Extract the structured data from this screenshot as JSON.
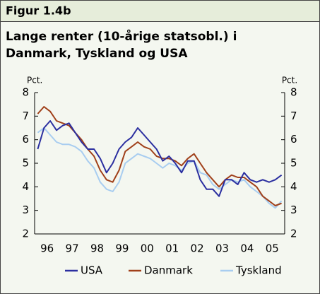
{
  "figure_label": "Figur 1.4b",
  "chart_data": {
    "type": "line",
    "title": "Lange renter (10-årige statsobl.) i Danmark, Tyskland og USA",
    "ylabel": "Pct.",
    "y2label": "Pct.",
    "x": [
      1996.125,
      1996.375,
      1996.625,
      1996.875,
      1997.125,
      1997.375,
      1997.625,
      1997.875,
      1998.125,
      1998.375,
      1998.625,
      1998.875,
      1999.125,
      1999.375,
      1999.625,
      1999.875,
      2000.125,
      2000.375,
      2000.625,
      2000.875,
      2001.125,
      2001.375,
      2001.625,
      2001.875,
      2002.125,
      2002.375,
      2002.625,
      2002.875,
      2003.125,
      2003.375,
      2003.625,
      2003.875,
      2004.125,
      2004.375,
      2004.625,
      2004.875,
      2005.125,
      2005.375,
      2005.625,
      2005.875
    ],
    "xlim": [
      1996,
      2006
    ],
    "xticks": [
      {
        "value": 1996.5,
        "label": "96"
      },
      {
        "value": 1997.5,
        "label": "97"
      },
      {
        "value": 1998.5,
        "label": "98"
      },
      {
        "value": 1999.5,
        "label": "99"
      },
      {
        "value": 2000.5,
        "label": "00"
      },
      {
        "value": 2001.5,
        "label": "01"
      },
      {
        "value": 2002.5,
        "label": "02"
      },
      {
        "value": 2003.5,
        "label": "03"
      },
      {
        "value": 2004.5,
        "label": "04"
      },
      {
        "value": 2005.5,
        "label": "05"
      }
    ],
    "ylim": [
      2,
      8
    ],
    "yticks": [
      2,
      3,
      4,
      5,
      6,
      7,
      8
    ],
    "y2lim": [
      2,
      8
    ],
    "y2ticks": [
      2,
      3,
      4,
      5,
      6,
      7,
      8
    ],
    "series": [
      {
        "name": "USA",
        "color": "#2b2fa0",
        "values": [
          5.6,
          6.5,
          6.8,
          6.4,
          6.6,
          6.7,
          6.3,
          5.9,
          5.6,
          5.6,
          5.2,
          4.6,
          5.0,
          5.6,
          5.9,
          6.1,
          6.5,
          6.2,
          5.9,
          5.6,
          5.1,
          5.3,
          5.0,
          4.6,
          5.1,
          5.1,
          4.3,
          3.9,
          3.9,
          3.6,
          4.3,
          4.3,
          4.1,
          4.6,
          4.3,
          4.2,
          4.3,
          4.2,
          4.3,
          4.5
        ]
      },
      {
        "name": "Danmark",
        "color": "#a0401a",
        "values": [
          7.1,
          7.4,
          7.2,
          6.8,
          6.7,
          6.6,
          6.3,
          6.0,
          5.6,
          5.3,
          4.7,
          4.3,
          4.2,
          4.7,
          5.5,
          5.7,
          5.9,
          5.7,
          5.6,
          5.3,
          5.2,
          5.2,
          5.1,
          4.9,
          5.2,
          5.4,
          5.0,
          4.6,
          4.3,
          4.0,
          4.3,
          4.5,
          4.4,
          4.4,
          4.2,
          4.0,
          3.6,
          3.4,
          3.2,
          3.3
        ]
      },
      {
        "name": "Tyskland",
        "color": "#a8cdf0",
        "values": [
          6.3,
          6.5,
          6.2,
          5.9,
          5.8,
          5.8,
          5.7,
          5.5,
          5.1,
          4.8,
          4.2,
          3.9,
          3.8,
          4.2,
          5.0,
          5.2,
          5.4,
          5.3,
          5.2,
          5.0,
          4.8,
          5.0,
          4.9,
          4.7,
          5.0,
          5.1,
          4.6,
          4.5,
          4.1,
          3.9,
          4.1,
          4.3,
          4.2,
          4.3,
          4.0,
          3.8,
          3.6,
          3.3,
          3.1,
          3.4
        ]
      }
    ]
  }
}
